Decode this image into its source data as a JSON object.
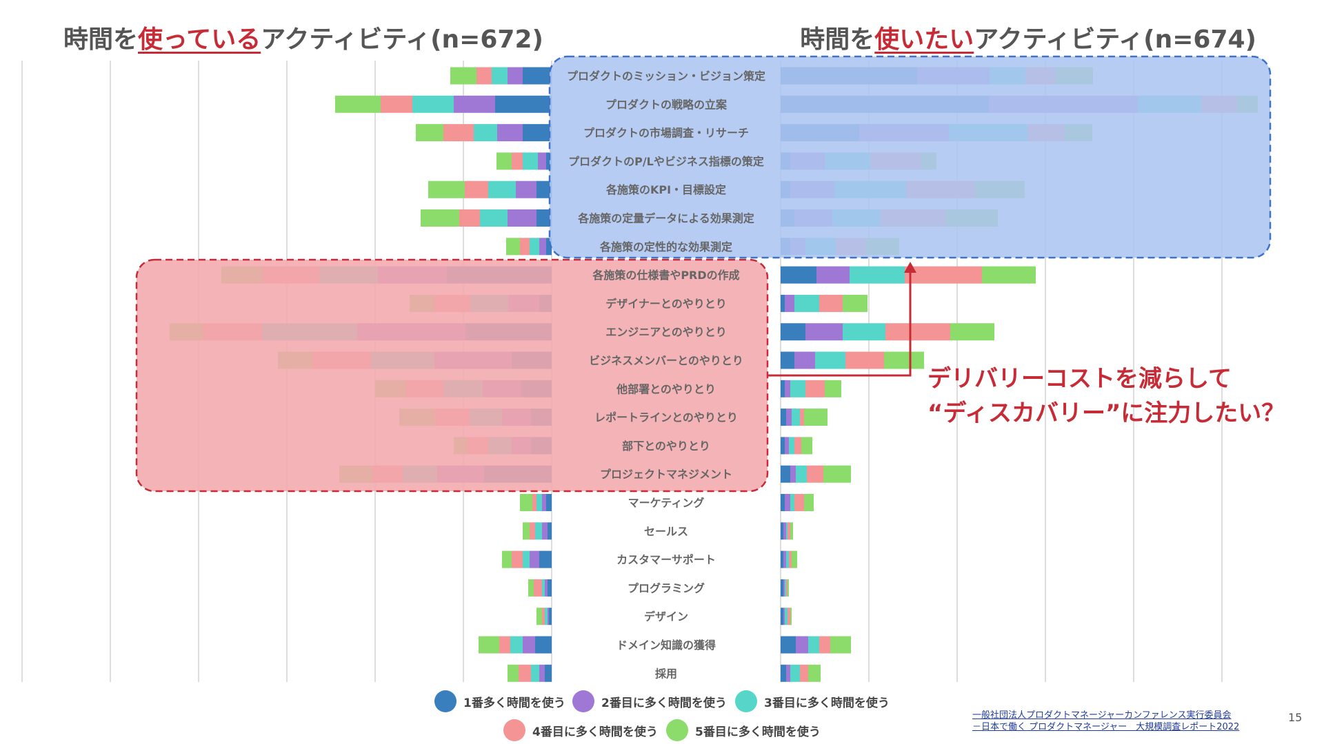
{
  "titles": {
    "left_prefix": "時間を",
    "left_emphasis": "使っている",
    "left_suffix": "アクティビティ(n=672)",
    "right_prefix": "時間を",
    "right_emphasis": "使いたい",
    "right_suffix": "アクティビティ(n=674)"
  },
  "annotation": {
    "line1": "デリバリーコストを減らして",
    "line2": "“ディスカバリー”に注力したい？"
  },
  "source": {
    "line1": "一般社団法人プロダクトマネージャーカンファレンス実行委員会",
    "line2": "－日本で働く プロダクトマネージャー　大規模調査レポート2022"
  },
  "page_number": "15",
  "legend": [
    {
      "label": "1番多く時間を使う",
      "color": "#3a7fbd"
    },
    {
      "label": "2番目に多く時間を使う",
      "color": "#9f78d6"
    },
    {
      "label": "3番目に多く時間を使う",
      "color": "#55d6c8"
    },
    {
      "label": "4番目に多く時間を使う",
      "color": "#f59494"
    },
    {
      "label": "5番目に多く時間を使う",
      "color": "#8cdc6c"
    }
  ],
  "highlight_colors": {
    "blue_box": "#adc5f0",
    "blue_border": "#3d72c9",
    "red_box": "#f2a9ad",
    "red_border": "#c62b36"
  },
  "chart_data": {
    "type": "bar",
    "orientation": "horizontal",
    "categories": [
      "プロダクトのミッション・ビジョン策定",
      "プロダクトの戦略の立案",
      "プロダクトの市場調査・リサーチ",
      "プロダクトのP/Lやビジネス指標の策定",
      "各施策のKPI・目標設定",
      "各施策の定量データによる効果測定",
      "各施策の定性的な効果測定",
      "各施策の仕様書やPRDの作成",
      "デザイナーとのやりとり",
      "エンジニアとのやりとり",
      "ビジネスメンバーとのやりとり",
      "他部署とのやりとり",
      "レポートラインとのやりとり",
      "部下とのやりとり",
      "プロジェクトマネジメント",
      "マーケティング",
      "セールス",
      "カスタマーサポート",
      "プログラミング",
      "デザイン",
      "ドメイン知識の獲得",
      "採用"
    ],
    "series_names": [
      "1番多く時間を使う",
      "2番目に多く時間を使う",
      "3番目に多く時間を使う",
      "4番目に多く時間を使う",
      "5番目に多く時間を使う"
    ],
    "left_using": [
      [
        42,
        22,
        23,
        22,
        38
      ],
      [
        82,
        60,
        60,
        46,
        66
      ],
      [
        42,
        37,
        34,
        44,
        40
      ],
      [
        8,
        12,
        22,
        16,
        22
      ],
      [
        22,
        30,
        40,
        34,
        53
      ],
      [
        22,
        42,
        40,
        30,
        56
      ],
      [
        8,
        10,
        14,
        14,
        20
      ],
      [
        152,
        100,
        85,
        82,
        60
      ],
      [
        18,
        45,
        55,
        52,
        36
      ],
      [
        125,
        157,
        138,
        86,
        48
      ],
      [
        58,
        112,
        92,
        85,
        50
      ],
      [
        45,
        55,
        57,
        54,
        45
      ],
      [
        30,
        42,
        47,
        50,
        52
      ],
      [
        30,
        28,
        34,
        30,
        20
      ],
      [
        98,
        68,
        50,
        44,
        48
      ],
      [
        8,
        6,
        8,
        6,
        18
      ],
      [
        6,
        8,
        10,
        8,
        10
      ],
      [
        18,
        14,
        10,
        16,
        14
      ],
      [
        6,
        4,
        4,
        12,
        8
      ],
      [
        4,
        2,
        4,
        4,
        8
      ],
      [
        24,
        18,
        18,
        16,
        30
      ],
      [
        10,
        8,
        12,
        18,
        16
      ]
    ],
    "right_want": [
      [
        198,
        105,
        52,
        44,
        54
      ],
      [
        302,
        216,
        92,
        52,
        30
      ],
      [
        114,
        130,
        114,
        54,
        40
      ],
      [
        14,
        50,
        66,
        74,
        22
      ],
      [
        14,
        64,
        104,
        100,
        72
      ],
      [
        20,
        55,
        70,
        94,
        76
      ],
      [
        14,
        22,
        44,
        44,
        48
      ],
      [
        52,
        48,
        80,
        112,
        78
      ],
      [
        6,
        14,
        36,
        34,
        36
      ],
      [
        36,
        54,
        62,
        94,
        64
      ],
      [
        20,
        30,
        44,
        56,
        58
      ],
      [
        6,
        8,
        22,
        28,
        24
      ],
      [
        8,
        8,
        12,
        6,
        34
      ],
      [
        6,
        6,
        8,
        10,
        16
      ],
      [
        14,
        8,
        16,
        24,
        40
      ],
      [
        6,
        8,
        6,
        14,
        14
      ],
      [
        4,
        4,
        2,
        4,
        4
      ],
      [
        4,
        4,
        4,
        4,
        8
      ],
      [
        4,
        2,
        2,
        2,
        2
      ],
      [
        4,
        2,
        4,
        4,
        2
      ],
      [
        22,
        18,
        16,
        16,
        30
      ],
      [
        8,
        6,
        14,
        12,
        18
      ]
    ]
  }
}
